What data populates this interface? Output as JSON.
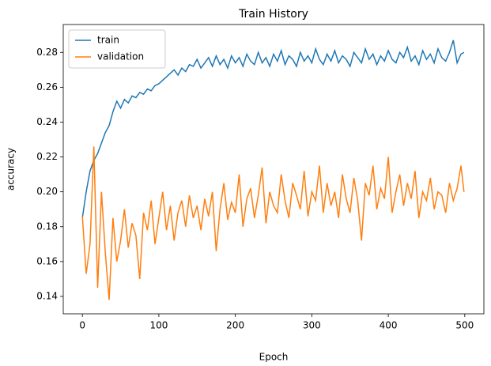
{
  "chart_data": {
    "type": "line",
    "title": "Train History",
    "xlabel": "Epoch",
    "ylabel": "accuracy",
    "x": [
      0,
      5,
      10,
      15,
      20,
      25,
      30,
      35,
      40,
      45,
      50,
      55,
      60,
      65,
      70,
      75,
      80,
      85,
      90,
      95,
      100,
      105,
      110,
      115,
      120,
      125,
      130,
      135,
      140,
      145,
      150,
      155,
      160,
      165,
      170,
      175,
      180,
      185,
      190,
      195,
      200,
      205,
      210,
      215,
      220,
      225,
      230,
      235,
      240,
      245,
      250,
      255,
      260,
      265,
      270,
      275,
      280,
      285,
      290,
      295,
      300,
      305,
      310,
      315,
      320,
      325,
      330,
      335,
      340,
      345,
      350,
      355,
      360,
      365,
      370,
      375,
      380,
      385,
      390,
      395,
      400,
      405,
      410,
      415,
      420,
      425,
      430,
      435,
      440,
      445,
      450,
      455,
      460,
      465,
      470,
      475,
      480,
      485,
      490,
      495,
      499
    ],
    "series": [
      {
        "name": "train",
        "color": "#1f77b4",
        "values": [
          0.185,
          0.2,
          0.212,
          0.218,
          0.222,
          0.228,
          0.234,
          0.238,
          0.246,
          0.252,
          0.248,
          0.253,
          0.251,
          0.255,
          0.254,
          0.257,
          0.256,
          0.259,
          0.258,
          0.261,
          0.262,
          0.264,
          0.266,
          0.268,
          0.27,
          0.267,
          0.271,
          0.269,
          0.273,
          0.272,
          0.276,
          0.271,
          0.274,
          0.277,
          0.272,
          0.278,
          0.273,
          0.276,
          0.271,
          0.278,
          0.274,
          0.277,
          0.272,
          0.279,
          0.275,
          0.273,
          0.28,
          0.274,
          0.277,
          0.272,
          0.279,
          0.275,
          0.281,
          0.273,
          0.278,
          0.276,
          0.272,
          0.28,
          0.275,
          0.278,
          0.274,
          0.282,
          0.276,
          0.273,
          0.279,
          0.275,
          0.281,
          0.274,
          0.278,
          0.276,
          0.272,
          0.28,
          0.277,
          0.274,
          0.282,
          0.276,
          0.279,
          0.273,
          0.278,
          0.275,
          0.281,
          0.276,
          0.274,
          0.28,
          0.277,
          0.283,
          0.275,
          0.278,
          0.273,
          0.281,
          0.276,
          0.279,
          0.274,
          0.282,
          0.277,
          0.275,
          0.28,
          0.287,
          0.274,
          0.279,
          0.28
        ]
      },
      {
        "name": "validation",
        "color": "#ff7f0e",
        "values": [
          0.186,
          0.153,
          0.17,
          0.226,
          0.145,
          0.2,
          0.165,
          0.138,
          0.185,
          0.16,
          0.172,
          0.19,
          0.168,
          0.182,
          0.175,
          0.15,
          0.188,
          0.178,
          0.195,
          0.17,
          0.185,
          0.2,
          0.178,
          0.192,
          0.172,
          0.188,
          0.195,
          0.18,
          0.198,
          0.185,
          0.192,
          0.178,
          0.196,
          0.186,
          0.2,
          0.166,
          0.19,
          0.205,
          0.184,
          0.194,
          0.188,
          0.21,
          0.18,
          0.196,
          0.202,
          0.185,
          0.198,
          0.214,
          0.182,
          0.2,
          0.192,
          0.188,
          0.21,
          0.195,
          0.185,
          0.205,
          0.198,
          0.19,
          0.212,
          0.186,
          0.2,
          0.195,
          0.215,
          0.188,
          0.205,
          0.192,
          0.2,
          0.185,
          0.21,
          0.196,
          0.188,
          0.208,
          0.195,
          0.172,
          0.205,
          0.198,
          0.215,
          0.19,
          0.202,
          0.196,
          0.22,
          0.188,
          0.2,
          0.21,
          0.192,
          0.205,
          0.196,
          0.212,
          0.185,
          0.2,
          0.195,
          0.208,
          0.19,
          0.2,
          0.198,
          0.188,
          0.205,
          0.195,
          0.202,
          0.215,
          0.2
        ]
      }
    ],
    "xlim": [
      -25,
      525
    ],
    "xticks": [
      0,
      100,
      200,
      300,
      400,
      500
    ],
    "ylim": [
      0.13,
      0.296
    ],
    "yticks": [
      0.14,
      0.16,
      0.18,
      {
        "value": 0.2,
        "label": "0.20"
      },
      0.22,
      0.24,
      0.26,
      0.28
    ],
    "legend": "upper left"
  }
}
